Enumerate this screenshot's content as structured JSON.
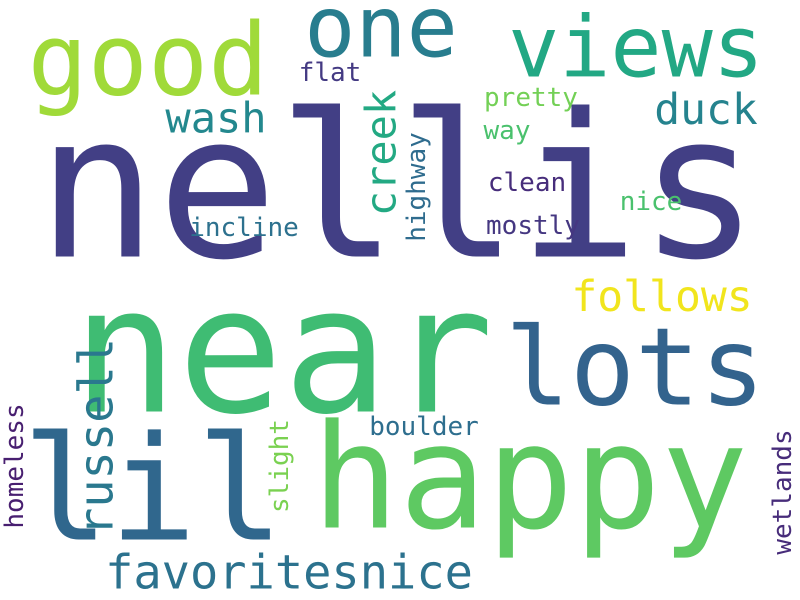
{
  "words": [
    {
      "text": "nellis",
      "color": "#423f85"
    },
    {
      "text": "near",
      "color": "#3fbc73"
    },
    {
      "text": "happy",
      "color": "#5ec962"
    },
    {
      "text": "lil",
      "color": "#30678d"
    },
    {
      "text": "lots",
      "color": "#33638d"
    },
    {
      "text": "good",
      "color": "#a0da39"
    },
    {
      "text": "views",
      "color": "#22a884"
    },
    {
      "text": "one",
      "color": "#287d8e"
    },
    {
      "text": "favoritesnice",
      "color": "#2c728e"
    },
    {
      "text": "russell",
      "color": "#2a788e"
    },
    {
      "text": "creek",
      "color": "#23a983"
    },
    {
      "text": "follows",
      "color": "#f1e51d"
    },
    {
      "text": "duck",
      "color": "#25838e"
    },
    {
      "text": "wash",
      "color": "#23888e"
    },
    {
      "text": "flat",
      "color": "#443a83"
    },
    {
      "text": "pretty",
      "color": "#73d056"
    },
    {
      "text": "way",
      "color": "#4ac16d"
    },
    {
      "text": "clean",
      "color": "#472d7b"
    },
    {
      "text": "mostly",
      "color": "#453781"
    },
    {
      "text": "nice",
      "color": "#4ac16d"
    },
    {
      "text": "incline",
      "color": "#2d718e"
    },
    {
      "text": "highway",
      "color": "#2f6c8e"
    },
    {
      "text": "boulder",
      "color": "#2e6e8e"
    },
    {
      "text": "slight",
      "color": "#7ad151"
    },
    {
      "text": "homeless",
      "color": "#481f70"
    },
    {
      "text": "wetlands",
      "color": "#472c7a"
    }
  ]
}
